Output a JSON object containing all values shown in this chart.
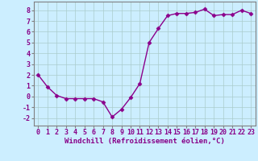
{
  "x": [
    0,
    1,
    2,
    3,
    4,
    5,
    6,
    7,
    8,
    9,
    10,
    11,
    12,
    13,
    14,
    15,
    16,
    17,
    18,
    19,
    20,
    21,
    22,
    23
  ],
  "y": [
    2.0,
    0.9,
    0.1,
    -0.2,
    -0.2,
    -0.2,
    -0.2,
    -0.5,
    -1.9,
    -1.2,
    -0.1,
    1.2,
    5.0,
    6.3,
    7.5,
    7.7,
    7.7,
    7.8,
    8.1,
    7.5,
    7.6,
    7.6,
    8.0,
    7.7
  ],
  "line_color": "#8B008B",
  "marker": "D",
  "markersize": 2.5,
  "linewidth": 1.0,
  "bg_color": "#cceeff",
  "grid_color": "#aacccc",
  "xlabel": "Windchill (Refroidissement éolien,°C)",
  "xlabel_color": "#880088",
  "xlabel_fontsize": 6.5,
  "xtick_labels": [
    "0",
    "1",
    "2",
    "3",
    "4",
    "5",
    "6",
    "7",
    "8",
    "9",
    "10",
    "11",
    "12",
    "13",
    "14",
    "15",
    "16",
    "17",
    "18",
    "19",
    "20",
    "21",
    "22",
    "23"
  ],
  "ytick_values": [
    -2,
    -1,
    0,
    1,
    2,
    3,
    4,
    5,
    6,
    7,
    8
  ],
  "ylim": [
    -2.7,
    8.8
  ],
  "xlim": [
    -0.5,
    23.5
  ],
  "tick_fontsize": 6,
  "tick_color": "#880088",
  "spine_color": "#808080"
}
